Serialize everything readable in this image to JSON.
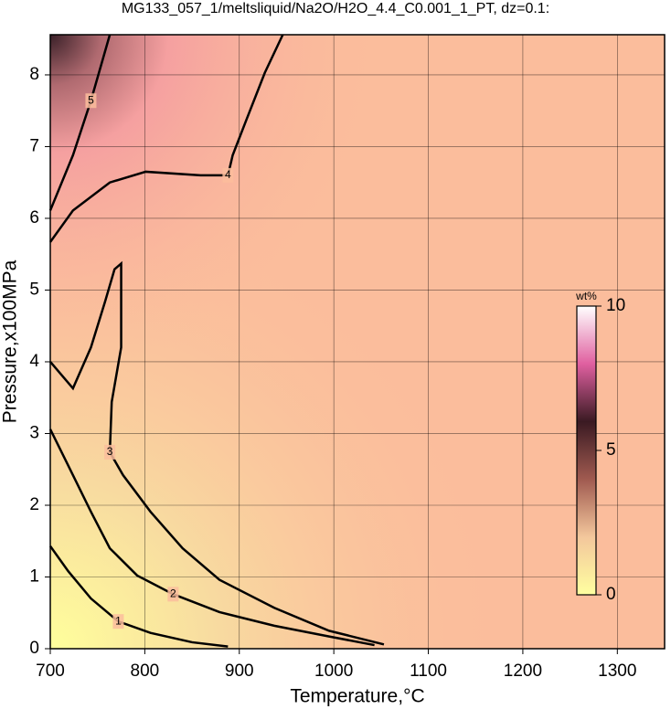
{
  "chart_data": {
    "type": "contour",
    "title": "MG133_057_1/meltsliquid/Na2O/H2O_4.4_C0.001_1_PT, dz=0.1:",
    "x_label": "Temperature,°C",
    "y_label": "Pressure,x100MPa",
    "xlim": [
      700,
      1350
    ],
    "ylim": [
      0,
      8.56
    ],
    "xticks": [
      700,
      800,
      900,
      1000,
      1100,
      1200,
      1300
    ],
    "yticks": [
      0,
      1,
      2,
      3,
      4,
      5,
      6,
      7,
      8
    ],
    "grid": true,
    "line_color": "#000000",
    "series": [
      {
        "level": 1,
        "x": [
          700,
          719,
          743,
          772,
          806,
          850,
          888
        ],
        "y": [
          1.43,
          1.08,
          0.7,
          0.38,
          0.22,
          0.09,
          0.03
        ]
      },
      {
        "level": 2,
        "x": [
          700,
          724,
          743,
          763,
          792,
          830,
          879,
          937,
          995,
          1043
        ],
        "y": [
          3.06,
          2.42,
          1.91,
          1.4,
          1.02,
          0.76,
          0.51,
          0.32,
          0.17,
          0.05
        ]
      },
      {
        "level": 3,
        "x": [
          700,
          724,
          743,
          758,
          768,
          775,
          775,
          765,
          763,
          777,
          806,
          840,
          879,
          937,
          995,
          1053
        ],
        "y": [
          4.0,
          3.63,
          4.2,
          4.84,
          5.29,
          5.37,
          4.2,
          3.44,
          2.74,
          2.42,
          1.91,
          1.4,
          0.96,
          0.57,
          0.25,
          0.06
        ]
      },
      {
        "level": 4,
        "x": [
          700,
          724,
          763,
          801,
          859,
          888,
          893,
          908,
          927,
          946
        ],
        "y": [
          5.67,
          6.11,
          6.5,
          6.65,
          6.6,
          6.6,
          6.88,
          7.39,
          8.03,
          8.56
        ]
      },
      {
        "level": 5,
        "x": [
          700,
          724,
          743,
          763
        ],
        "y": [
          6.11,
          6.88,
          7.64,
          8.56
        ]
      }
    ],
    "colorbar": {
      "label": "wt%",
      "lim": [
        0,
        10
      ],
      "ticks": [
        0,
        5,
        10
      ],
      "colors": [
        "#ffffa0",
        "#f3c79c",
        "#a05a50",
        "#3a1a22",
        "#e060a0",
        "#ffffff"
      ]
    }
  }
}
